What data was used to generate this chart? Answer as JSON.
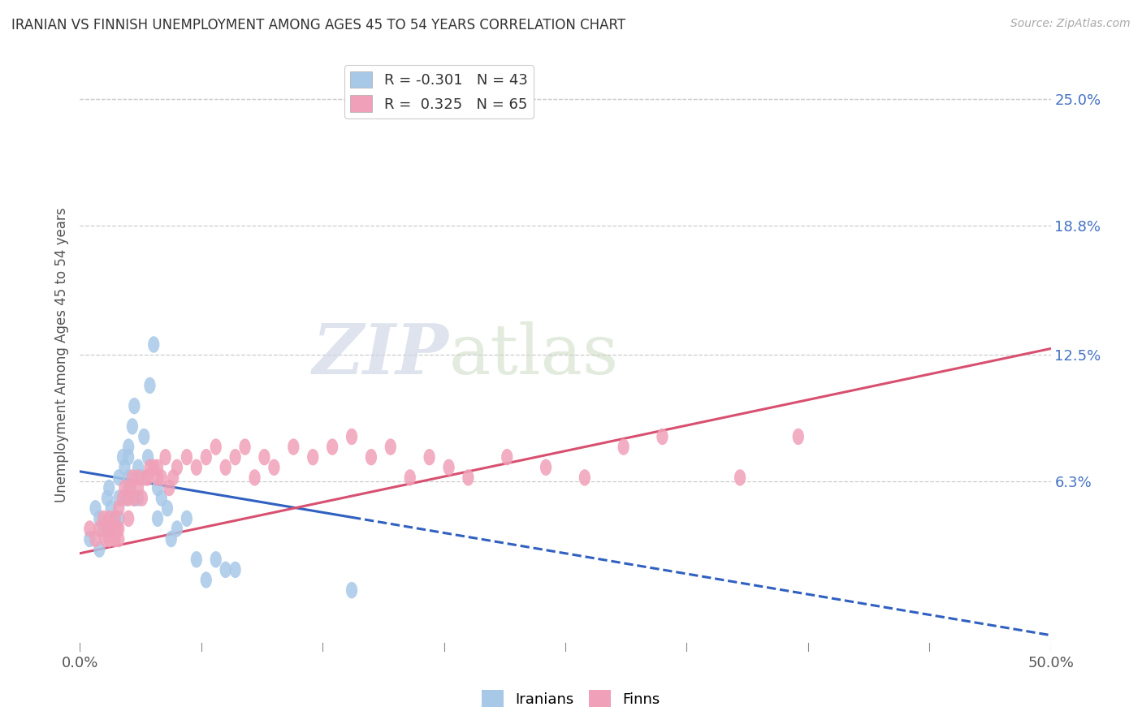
{
  "title": "IRANIAN VS FINNISH UNEMPLOYMENT AMONG AGES 45 TO 54 YEARS CORRELATION CHART",
  "source": "Source: ZipAtlas.com",
  "ylabel_label": "Unemployment Among Ages 45 to 54 years",
  "right_ytick_labels": [
    "25.0%",
    "18.8%",
    "12.5%",
    "6.3%"
  ],
  "right_ytick_vals": [
    0.25,
    0.188,
    0.125,
    0.063
  ],
  "xlim": [
    0.0,
    0.5
  ],
  "ylim": [
    -0.02,
    0.27
  ],
  "legend_blue_r": "-0.301",
  "legend_blue_n": "43",
  "legend_pink_r": "0.325",
  "legend_pink_n": "65",
  "blue_color": "#a8c8e8",
  "pink_color": "#f0a0b8",
  "blue_line_color": "#3060c0",
  "pink_line_color": "#d85070",
  "watermark_zip": "ZIP",
  "watermark_atlas": "atlas",
  "blue_intercept": 0.068,
  "blue_slope": -0.16,
  "pink_intercept": 0.028,
  "pink_slope": 0.2,
  "iranians_x": [
    0.005,
    0.008,
    0.01,
    0.01,
    0.012,
    0.014,
    0.015,
    0.015,
    0.016,
    0.018,
    0.02,
    0.02,
    0.02,
    0.022,
    0.023,
    0.024,
    0.025,
    0.025,
    0.025,
    0.025,
    0.027,
    0.028,
    0.028,
    0.03,
    0.03,
    0.032,
    0.033,
    0.035,
    0.036,
    0.038,
    0.04,
    0.04,
    0.042,
    0.045,
    0.047,
    0.05,
    0.055,
    0.06,
    0.065,
    0.07,
    0.075,
    0.08,
    0.14
  ],
  "iranians_y": [
    0.035,
    0.05,
    0.045,
    0.03,
    0.04,
    0.055,
    0.06,
    0.04,
    0.05,
    0.045,
    0.065,
    0.055,
    0.045,
    0.075,
    0.07,
    0.055,
    0.08,
    0.065,
    0.075,
    0.06,
    0.09,
    0.1,
    0.055,
    0.055,
    0.07,
    0.065,
    0.085,
    0.075,
    0.11,
    0.13,
    0.06,
    0.045,
    0.055,
    0.05,
    0.035,
    0.04,
    0.045,
    0.025,
    0.015,
    0.025,
    0.02,
    0.02,
    0.01
  ],
  "finns_x": [
    0.005,
    0.008,
    0.01,
    0.012,
    0.013,
    0.014,
    0.015,
    0.015,
    0.016,
    0.017,
    0.018,
    0.018,
    0.019,
    0.02,
    0.02,
    0.02,
    0.022,
    0.023,
    0.025,
    0.025,
    0.026,
    0.027,
    0.028,
    0.03,
    0.03,
    0.032,
    0.034,
    0.035,
    0.036,
    0.038,
    0.04,
    0.04,
    0.042,
    0.044,
    0.046,
    0.048,
    0.05,
    0.055,
    0.06,
    0.065,
    0.07,
    0.075,
    0.08,
    0.085,
    0.09,
    0.095,
    0.1,
    0.11,
    0.12,
    0.13,
    0.14,
    0.15,
    0.16,
    0.17,
    0.18,
    0.19,
    0.2,
    0.22,
    0.24,
    0.26,
    0.28,
    0.3,
    0.34,
    0.37,
    0.22
  ],
  "finns_y": [
    0.04,
    0.035,
    0.04,
    0.045,
    0.035,
    0.04,
    0.045,
    0.035,
    0.04,
    0.04,
    0.045,
    0.035,
    0.04,
    0.05,
    0.04,
    0.035,
    0.055,
    0.06,
    0.055,
    0.045,
    0.06,
    0.065,
    0.055,
    0.06,
    0.065,
    0.055,
    0.065,
    0.065,
    0.07,
    0.07,
    0.065,
    0.07,
    0.065,
    0.075,
    0.06,
    0.065,
    0.07,
    0.075,
    0.07,
    0.075,
    0.08,
    0.07,
    0.075,
    0.08,
    0.065,
    0.075,
    0.07,
    0.08,
    0.075,
    0.08,
    0.085,
    0.075,
    0.08,
    0.065,
    0.075,
    0.07,
    0.065,
    0.075,
    0.07,
    0.065,
    0.08,
    0.085,
    0.065,
    0.085,
    0.245
  ]
}
